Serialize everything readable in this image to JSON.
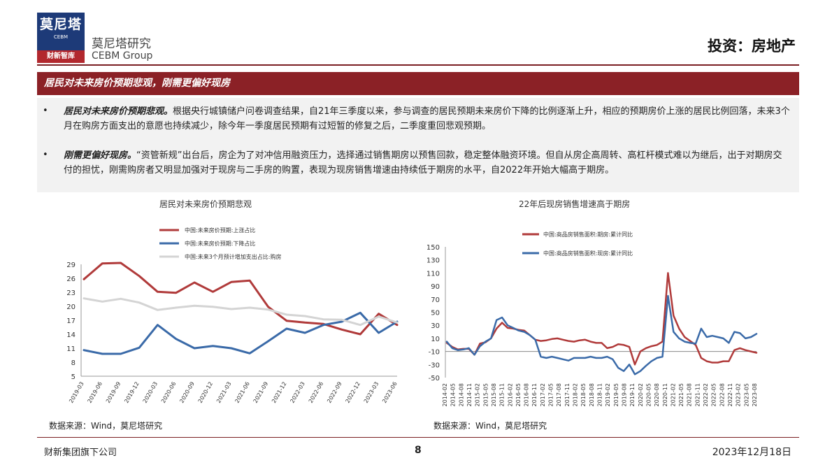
{
  "header": {
    "logo_cn": "莫尼塔",
    "logo_en": "CEBM",
    "logo_sub": "财新智库",
    "brand_cn": "莫尼塔研究",
    "brand_en": "CEBM Group",
    "category": "投资：房地产"
  },
  "title": "居民对未来房价预期悲观，刚需更偏好现房",
  "bullets": [
    {
      "lead": "居民对未来房价预期悲观。",
      "text": "根据央行城镇储户问卷调查结果，自21年三季度以来，参与调查的居民预期未来房价下降的比例逐渐上升，相应的预期房价上涨的居民比例回落，未来3个月在购房方面支出的意愿也持续减少，除今年一季度居民预期有过短暂的修复之后，二季度重回悲观预期。"
    },
    {
      "lead": "刚需更偏好现房。",
      "text": "“资管新规”出台后，房企为了对冲信用融资压力，选择通过销售期房以预售回款，稳定整体融资环境。但自从房企高周转、高杠杆模式难以为继后，出于对期房交付的担忧，刚需购房者又明显加强对于现房与二手房的购置，表现为现房销售增速由持续低于期房的水平，自2022年开始大幅高于期房。"
    }
  ],
  "bullet_symbol": "•",
  "chart_data": [
    {
      "type": "line",
      "title": "居民对未来房价预期悲观",
      "categories": [
        "2019-03",
        "2019-06",
        "2019-09",
        "2019-12",
        "2020-03",
        "2020-06",
        "2020-09",
        "2020-12",
        "2021-03",
        "2021-06",
        "2021-09",
        "2021-12",
        "2022-03",
        "2022-06",
        "2022-09",
        "2022-12",
        "2023-03",
        "2023-06"
      ],
      "series": [
        {
          "name": "中国:未来房价预期:上涨占比",
          "color": "#b03a3a",
          "values": [
            25.8,
            29.2,
            29.3,
            26.5,
            23.1,
            22.9,
            25.1,
            23.1,
            25.2,
            25.5,
            19.9,
            16.9,
            16.5,
            16.2,
            15.0,
            14.0,
            18.4,
            16.0
          ]
        },
        {
          "name": "中国:未来房价预期:下降占比",
          "color": "#3a6aa8",
          "values": [
            10.6,
            9.8,
            9.8,
            11.1,
            16.0,
            13.0,
            11.0,
            11.5,
            11.0,
            9.9,
            12.5,
            15.2,
            14.3,
            16.0,
            16.7,
            18.6,
            14.3,
            16.7
          ]
        },
        {
          "name": "中国:未来3个月预计增加支出占比:购房",
          "color": "#d4d4d4",
          "values": [
            21.7,
            21.0,
            21.6,
            20.8,
            19.2,
            19.7,
            20.1,
            19.9,
            19.4,
            19.7,
            19.3,
            18.2,
            17.9,
            17.2,
            17.1,
            16.0,
            17.8,
            16.5
          ]
        }
      ],
      "yticks": [
        5,
        8,
        11,
        14,
        17,
        20,
        23,
        26,
        29
      ],
      "ylim": [
        5,
        29
      ]
    },
    {
      "type": "line",
      "title": "22年后现房销售增速高于期房",
      "x_tick_labels": [
        "2014-02",
        "2014-05",
        "2014-08",
        "2014-11",
        "2015-02",
        "2015-05",
        "2015-08",
        "2015-11",
        "2016-02",
        "2016-05",
        "2016-08",
        "2016-11",
        "2017-02",
        "2017-05",
        "2017-08",
        "2017-11",
        "2018-02",
        "2018-05",
        "2018-08",
        "2018-11",
        "2019-02",
        "2019-05",
        "2019-08",
        "2019-11",
        "2020-02",
        "2020-05",
        "2020-08",
        "2020-11",
        "2021-02",
        "2021-05",
        "2021-08",
        "2021-11",
        "2022-02",
        "2022-05",
        "2022-08",
        "2022-11",
        "2023-02",
        "2023-05",
        "2023-08"
      ],
      "series": [
        {
          "name": "中国:商品房销售面积:期房:累计同比",
          "color": "#b03a3a",
          "points": [
            [
              0,
              3
            ],
            [
              1,
              -3
            ],
            [
              2,
              -7
            ],
            [
              3,
              -6
            ],
            [
              4,
              -6
            ],
            [
              5,
              -15
            ],
            [
              6,
              2
            ],
            [
              7,
              4
            ],
            [
              8,
              10
            ],
            [
              9,
              25
            ],
            [
              10,
              34
            ],
            [
              11,
              26
            ],
            [
              12,
              25
            ],
            [
              13,
              23
            ],
            [
              14,
              22
            ],
            [
              15,
              15
            ],
            [
              16,
              8
            ],
            [
              17,
              6
            ],
            [
              18,
              7
            ],
            [
              19,
              9
            ],
            [
              20,
              10
            ],
            [
              21,
              8
            ],
            [
              22,
              6
            ],
            [
              23,
              5
            ],
            [
              24,
              7
            ],
            [
              25,
              8
            ],
            [
              26,
              5
            ],
            [
              27,
              3
            ],
            [
              28,
              3
            ],
            [
              29,
              -5
            ],
            [
              30,
              -3
            ],
            [
              31,
              1
            ],
            [
              32,
              0
            ],
            [
              33,
              -3
            ],
            [
              34,
              -30
            ],
            [
              35,
              -10
            ],
            [
              36,
              -5
            ],
            [
              37,
              -2
            ],
            [
              38,
              0
            ],
            [
              39,
              5
            ],
            [
              40,
              110
            ],
            [
              41,
              45
            ],
            [
              42,
              25
            ],
            [
              43,
              12
            ],
            [
              44,
              6
            ],
            [
              45,
              0
            ],
            [
              46,
              -20
            ],
            [
              47,
              -25
            ],
            [
              48,
              -27
            ],
            [
              49,
              -27
            ],
            [
              50,
              -25
            ],
            [
              51,
              -25
            ],
            [
              52,
              -8
            ],
            [
              53,
              -5
            ],
            [
              54,
              -8
            ],
            [
              55,
              -10
            ],
            [
              56,
              -12
            ]
          ]
        },
        {
          "name": "中国:商品房销售面积:现房:累计同比",
          "color": "#3a6aa8",
          "points": [
            [
              0,
              5
            ],
            [
              1,
              -5
            ],
            [
              2,
              -8
            ],
            [
              3,
              -7
            ],
            [
              4,
              -5
            ],
            [
              5,
              -15
            ],
            [
              6,
              -2
            ],
            [
              7,
              5
            ],
            [
              8,
              10
            ],
            [
              9,
              38
            ],
            [
              10,
              42
            ],
            [
              11,
              30
            ],
            [
              12,
              26
            ],
            [
              13,
              22
            ],
            [
              14,
              20
            ],
            [
              15,
              15
            ],
            [
              16,
              8
            ],
            [
              17,
              -18
            ],
            [
              18,
              -20
            ],
            [
              19,
              -18
            ],
            [
              20,
              -20
            ],
            [
              21,
              -22
            ],
            [
              22,
              -24
            ],
            [
              23,
              -20
            ],
            [
              24,
              -20
            ],
            [
              25,
              -20
            ],
            [
              26,
              -18
            ],
            [
              27,
              -20
            ],
            [
              28,
              -20
            ],
            [
              29,
              -18
            ],
            [
              30,
              -22
            ],
            [
              31,
              -35
            ],
            [
              32,
              -40
            ],
            [
              33,
              -30
            ],
            [
              34,
              -45
            ],
            [
              35,
              -40
            ],
            [
              36,
              -32
            ],
            [
              37,
              -25
            ],
            [
              38,
              -20
            ],
            [
              39,
              -18
            ],
            [
              40,
              75
            ],
            [
              41,
              20
            ],
            [
              42,
              10
            ],
            [
              43,
              5
            ],
            [
              44,
              3
            ],
            [
              45,
              2
            ],
            [
              46,
              25
            ],
            [
              47,
              12
            ],
            [
              48,
              14
            ],
            [
              49,
              12
            ],
            [
              50,
              10
            ],
            [
              51,
              3
            ],
            [
              52,
              20
            ],
            [
              53,
              18
            ],
            [
              54,
              10
            ],
            [
              55,
              12
            ],
            [
              56,
              17
            ]
          ]
        }
      ],
      "yticks": [
        -50,
        -30,
        -10,
        10,
        30,
        50,
        70,
        90,
        110,
        130,
        150
      ],
      "ylim": [
        -50,
        150
      ],
      "x_range": [
        0,
        56
      ]
    }
  ],
  "sources": [
    "数据来源：Wind，莫尼塔研究",
    "数据来源：Wind，莫尼塔研究"
  ],
  "footer": {
    "left": "财新集团旗下公司",
    "page": "8",
    "date": "2023年12月18日"
  }
}
